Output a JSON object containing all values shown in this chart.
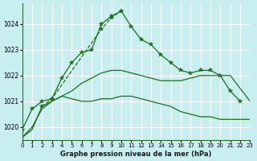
{
  "title": "Graphe pression niveau de la mer (hPa)",
  "bg_color": "#c8eef0",
  "grid_color": "#ffffff",
  "line_color": "#1a6e1a",
  "xlim": [
    0,
    23
  ],
  "ylim": [
    1019.5,
    1024.8
  ],
  "yticks": [
    1020,
    1021,
    1022,
    1023,
    1024
  ],
  "xticks": [
    0,
    1,
    2,
    3,
    4,
    5,
    6,
    7,
    8,
    9,
    10,
    11,
    12,
    13,
    14,
    15,
    16,
    17,
    18,
    19,
    20,
    21,
    22,
    23
  ],
  "series": {
    "line1": [
      1019.6,
      1019.9,
      1020.8,
      1021.0,
      1021.2,
      1021.1,
      1021.0,
      1021.0,
      1021.1,
      1021.1,
      1021.2,
      1021.2,
      1021.1,
      1021.0,
      1020.9,
      1020.8,
      1020.6,
      1020.5,
      1020.4,
      1020.4,
      1020.3,
      1020.3,
      1020.3,
      1020.3
    ],
    "line2": [
      1019.6,
      1020.0,
      1020.7,
      1021.0,
      1021.2,
      1021.4,
      1021.7,
      1021.9,
      1022.1,
      1022.2,
      1022.2,
      1022.1,
      1022.0,
      1021.9,
      1021.8,
      1021.8,
      1021.8,
      1021.9,
      1022.0,
      1022.0,
      1022.0,
      1022.0,
      1021.5,
      1021.0
    ],
    "line3": [
      1019.9,
      1020.7,
      1021.0,
      1021.1,
      1021.9,
      1022.5,
      1022.9,
      1023.0,
      1024.0,
      1024.3,
      1024.5,
      1023.9,
      1023.4,
      1023.2,
      1022.8,
      1022.5,
      1022.2,
      1022.1,
      1022.2,
      1022.2,
      1022.0,
      1021.4,
      1021.0,
      null
    ],
    "line4": [
      null,
      null,
      1020.8,
      1021.1,
      null,
      null,
      null,
      null,
      1023.8,
      1024.25,
      1024.5,
      null,
      null,
      null,
      null,
      null,
      null,
      null,
      null,
      null,
      null,
      null,
      null,
      null
    ]
  }
}
